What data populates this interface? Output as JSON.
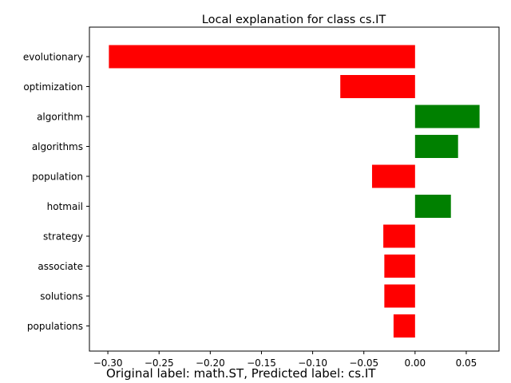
{
  "chart_data": {
    "type": "bar",
    "orientation": "horizontal",
    "title": "Local explanation for class cs.IT",
    "xlabel": "",
    "ylabel": "",
    "categories": [
      "evolutionary",
      "optimization",
      "algorithm",
      "algorithms",
      "population",
      "hotmail",
      "strategy",
      "associate",
      "solutions",
      "populations"
    ],
    "values": [
      -0.299,
      -0.073,
      0.063,
      0.042,
      -0.042,
      0.035,
      -0.031,
      -0.03,
      -0.03,
      -0.021
    ],
    "xlim": [
      -0.318,
      0.082
    ],
    "xticks": [
      -0.3,
      -0.25,
      -0.2,
      -0.15,
      -0.1,
      -0.05,
      0.0,
      0.05
    ],
    "xtick_labels": [
      "−0.30",
      "−0.25",
      "−0.20",
      "−0.15",
      "−0.10",
      "−0.05",
      "0.00",
      "0.05"
    ],
    "colors": {
      "positive": "#008000",
      "negative": "#ff0000"
    },
    "grid": false,
    "legend": "none"
  },
  "caption": "Original label: math.ST, Predicted label: cs.IT"
}
